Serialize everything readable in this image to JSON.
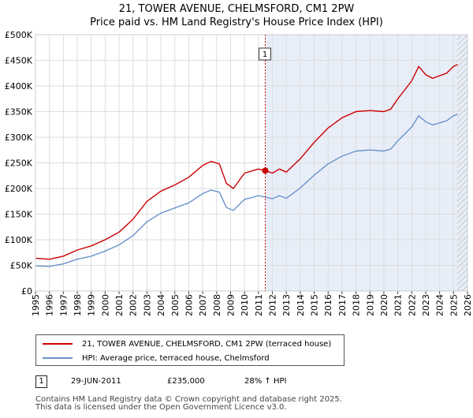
{
  "title_line1": "21, TOWER AVENUE, CHELMSFORD, CM1 2PW",
  "title_line2": "Price paid vs. HM Land Registry's House Price Index (HPI)",
  "chart_data": {
    "type": "line",
    "title": "21, TOWER AVENUE, CHELMSFORD, CM1 2PW — Price paid vs. HM Land Registry's House Price Index (HPI)",
    "xlabel": "",
    "ylabel": "",
    "xlim": [
      1995,
      2026
    ],
    "ylim": [
      0,
      500000
    ],
    "grid": true,
    "y_ticks": [
      0,
      50000,
      100000,
      150000,
      200000,
      250000,
      300000,
      350000,
      400000,
      450000,
      500000
    ],
    "y_tick_labels": [
      "£0",
      "£50K",
      "£100K",
      "£150K",
      "£200K",
      "£250K",
      "£300K",
      "£350K",
      "£400K",
      "£450K",
      "£500K"
    ],
    "x_ticks": [
      1995,
      1996,
      1997,
      1998,
      1999,
      2000,
      2001,
      2002,
      2003,
      2004,
      2005,
      2006,
      2007,
      2008,
      2009,
      2010,
      2011,
      2012,
      2013,
      2014,
      2015,
      2016,
      2017,
      2018,
      2019,
      2020,
      2021,
      2022,
      2023,
      2024,
      2025,
      2026
    ],
    "x_tick_labels": [
      "1995",
      "1996",
      "1997",
      "1998",
      "1999",
      "2000",
      "2001",
      "2002",
      "2003",
      "2004",
      "2005",
      "2006",
      "2007",
      "2008",
      "2009",
      "2010",
      "2011",
      "2012",
      "2013",
      "2014",
      "2015",
      "2016",
      "2017",
      "2018",
      "2019",
      "2020",
      "2021",
      "2022",
      "2023",
      "2024",
      "2025",
      "2026"
    ],
    "shaded_from": 2011.49,
    "hatched_from": 2025.25,
    "series": [
      {
        "name": "21, TOWER AVENUE, CHELMSFORD, CM1 2PW (terraced house)",
        "color": "#cc0000",
        "x": [
          1995.0,
          1996.0,
          1997.0,
          1998.0,
          1999.0,
          2000.0,
          2001.0,
          2002.0,
          2003.0,
          2004.0,
          2005.0,
          2006.0,
          2007.0,
          2007.6,
          2008.2,
          2008.7,
          2009.2,
          2010.0,
          2010.5,
          2011.0,
          2011.49,
          2012.0,
          2012.5,
          2013.0,
          2014.0,
          2015.0,
          2016.0,
          2017.0,
          2018.0,
          2019.0,
          2020.0,
          2020.5,
          2021.0,
          2022.0,
          2022.5,
          2023.0,
          2023.5,
          2024.0,
          2024.5,
          2025.0,
          2025.3
        ],
        "values": [
          64000,
          62000,
          68000,
          80000,
          88000,
          100000,
          115000,
          140000,
          175000,
          195000,
          207000,
          222000,
          245000,
          253000,
          248000,
          210000,
          200000,
          230000,
          234000,
          238000,
          235000,
          230000,
          238000,
          232000,
          258000,
          290000,
          318000,
          338000,
          350000,
          352000,
          350000,
          355000,
          375000,
          410000,
          438000,
          422000,
          415000,
          420000,
          425000,
          438000,
          442000
        ]
      },
      {
        "name": "HPI: Average price, terraced house, Chelmsford",
        "color": "#6a93cc",
        "x": [
          1995.0,
          1996.0,
          1997.0,
          1998.0,
          1999.0,
          2000.0,
          2001.0,
          2002.0,
          2003.0,
          2004.0,
          2005.0,
          2006.0,
          2007.0,
          2007.6,
          2008.2,
          2008.7,
          2009.2,
          2010.0,
          2010.5,
          2011.0,
          2011.49,
          2012.0,
          2012.5,
          2013.0,
          2014.0,
          2015.0,
          2016.0,
          2017.0,
          2018.0,
          2019.0,
          2020.0,
          2020.5,
          2021.0,
          2022.0,
          2022.5,
          2023.0,
          2023.5,
          2024.0,
          2024.5,
          2025.0,
          2025.3
        ],
        "values": [
          49000,
          48000,
          53000,
          62000,
          68000,
          78000,
          90000,
          108000,
          135000,
          152000,
          162000,
          172000,
          190000,
          197000,
          193000,
          163000,
          157000,
          179000,
          182000,
          186000,
          183000,
          180000,
          186000,
          181000,
          201000,
          226000,
          248000,
          263000,
          273000,
          275000,
          273000,
          277000,
          293000,
          320000,
          342000,
          330000,
          324000,
          328000,
          332000,
          342000,
          345000
        ]
      }
    ],
    "annotations": [
      {
        "label": "1",
        "x": 2011.49,
        "value": 235000
      }
    ]
  },
  "legend": {
    "series1_label": "21, TOWER AVENUE, CHELMSFORD, CM1 2PW (terraced house)",
    "series2_label": "HPI: Average price, terraced house, Chelmsford",
    "series1_color": "#cc0000",
    "series2_color": "#6a93cc"
  },
  "sale": {
    "marker": "1",
    "date": "29-JUN-2011",
    "price": "£235,000",
    "hpi_change": "28% ↑ HPI"
  },
  "footer": {
    "line1": "Contains HM Land Registry data © Crown copyright and database right 2025.",
    "line2": "This data is licensed under the Open Government Licence v3.0."
  }
}
